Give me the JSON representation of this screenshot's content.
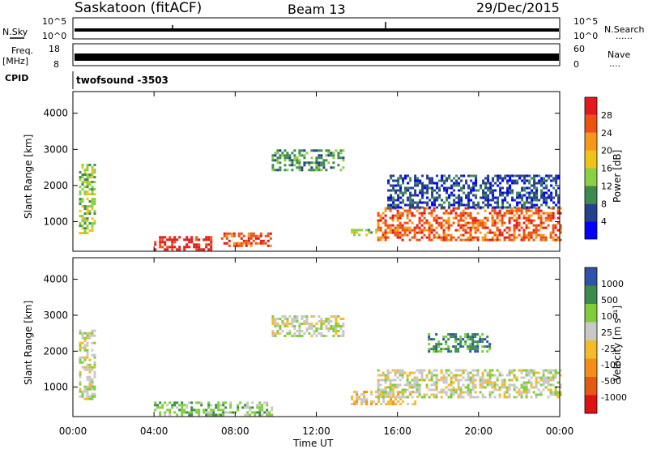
{
  "header": {
    "station": "Saskatoon (fitACF)",
    "beam": "Beam 13",
    "date": "29/Dec/2015"
  },
  "strip_panels": {
    "nsky_label": "N.Sky",
    "nsearch_label": "N.Search",
    "nsearch_dots": "......",
    "noise_ticks_left": [
      "10^5",
      "10^0"
    ],
    "noise_ticks_right": [
      "10^5",
      "10^0"
    ],
    "freq_label_top": "Freq.",
    "freq_label_bottom": "[MHz]",
    "freq_ticks": [
      "18",
      "8"
    ],
    "nave_label": "Nave",
    "nave_dots": "....",
    "nave_ticks": [
      "60",
      "0"
    ],
    "cpid_label": "CPID",
    "cpid_value": "twofsound -3503"
  },
  "colors": {
    "power": [
      "#0000ff",
      "#26408c",
      "#3c8a4f",
      "#8bcf45",
      "#f1c31a",
      "#f59a18",
      "#ec5212",
      "#e31a1a"
    ],
    "velocity": [
      "#dd1212",
      "#e35a14",
      "#f08f1c",
      "#f5ba28",
      "#c8c8c8",
      "#7fcd3c",
      "#3c8a4f",
      "#2d52a8"
    ]
  },
  "chart_data": [
    {
      "type": "heatmap",
      "ylabel": "Slant Range [km]",
      "y_ticks": [
        "1000",
        "2000",
        "3000",
        "4000"
      ],
      "y_tick_values": [
        1000,
        2000,
        3000,
        4000
      ],
      "ylim": [
        180,
        4600
      ],
      "x_ticks": [
        "00:00",
        "04:00",
        "08:00",
        "12:00",
        "16:00",
        "20:00",
        "00:00"
      ],
      "xlim_hours": [
        0,
        24
      ],
      "colorbar": {
        "label": "Power [dB]",
        "tick_labels": [
          "4",
          "8",
          "12",
          "16",
          "20",
          "24",
          "28"
        ]
      },
      "echo_regions": [
        {
          "t0": 0.3,
          "t1": 1.1,
          "r0": 700,
          "r1": 2600,
          "level": 3
        },
        {
          "t0": 4.0,
          "t1": 6.8,
          "r0": 200,
          "r1": 600,
          "level": 7
        },
        {
          "t0": 7.3,
          "t1": 9.8,
          "r0": 300,
          "r1": 700,
          "level": 6
        },
        {
          "t0": 9.8,
          "t1": 13.3,
          "r0": 2400,
          "r1": 3000,
          "level": 2
        },
        {
          "t0": 13.7,
          "t1": 15.0,
          "r0": 600,
          "r1": 800,
          "level": 3
        },
        {
          "t0": 15.0,
          "t1": 24.0,
          "r0": 500,
          "r1": 1400,
          "level": 6
        },
        {
          "t0": 15.5,
          "t1": 24.0,
          "r0": 1400,
          "r1": 2300,
          "level": 1
        }
      ]
    },
    {
      "type": "heatmap",
      "ylabel": "Slant Range [km]",
      "y_ticks": [
        "1000",
        "2000",
        "3000",
        "4000"
      ],
      "y_tick_values": [
        1000,
        2000,
        3000,
        4000
      ],
      "ylim": [
        180,
        4600
      ],
      "x_ticks": [
        "00:00",
        "04:00",
        "08:00",
        "12:00",
        "16:00",
        "20:00",
        "00:00"
      ],
      "xlim_hours": [
        0,
        24
      ],
      "xlabel": "Time UT",
      "colorbar": {
        "label": "Velocity [m s⁻¹]",
        "tick_labels": [
          "-1000",
          "-500",
          "-100",
          "-25",
          "25",
          "100",
          "500",
          "1000"
        ]
      },
      "echo_regions": [
        {
          "t0": 0.3,
          "t1": 1.1,
          "r0": 700,
          "r1": 2600,
          "level": 4
        },
        {
          "t0": 4.0,
          "t1": 9.8,
          "r0": 200,
          "r1": 600,
          "level": 5
        },
        {
          "t0": 9.8,
          "t1": 13.3,
          "r0": 2400,
          "r1": 3000,
          "level": 4
        },
        {
          "t0": 13.7,
          "t1": 17.0,
          "r0": 500,
          "r1": 900,
          "level": 3
        },
        {
          "t0": 15.0,
          "t1": 24.0,
          "r0": 700,
          "r1": 1500,
          "level": 4
        },
        {
          "t0": 17.5,
          "t1": 20.5,
          "r0": 2000,
          "r1": 2500,
          "level": 6
        }
      ]
    }
  ]
}
